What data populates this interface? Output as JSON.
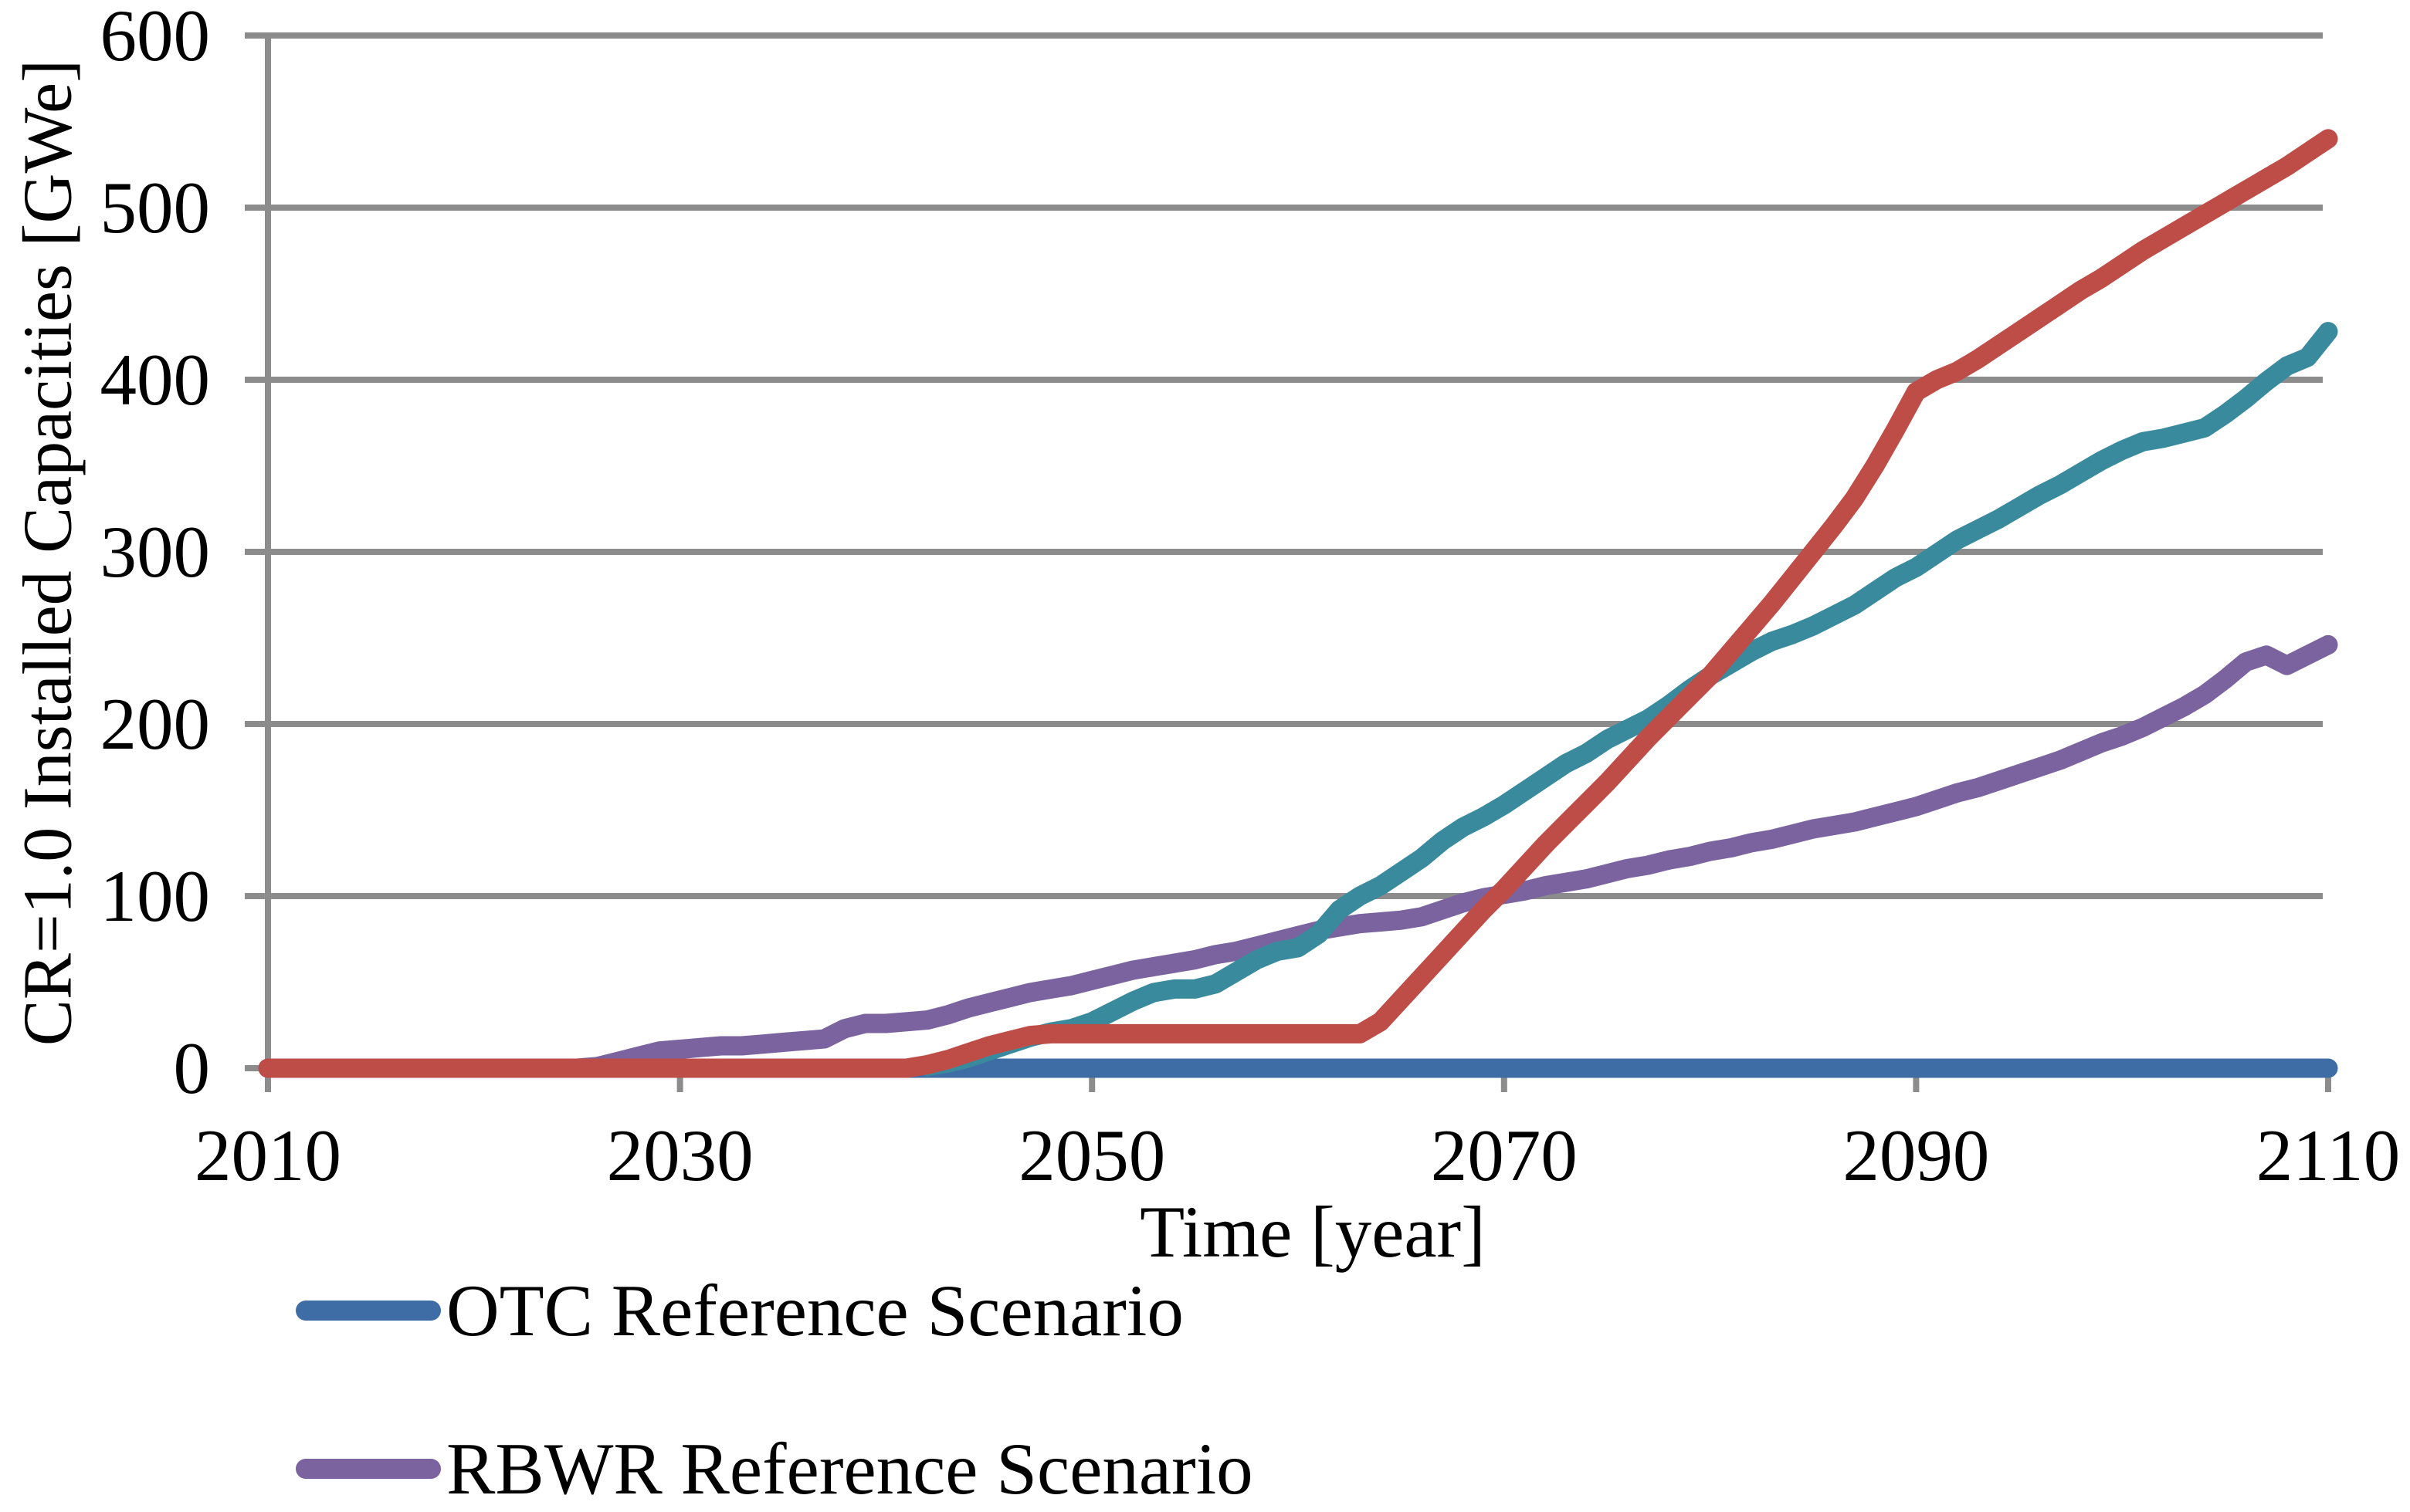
{
  "chart_data": {
    "type": "line",
    "title": "",
    "xlabel": "Time [year]",
    "ylabel": "CR=1.0 Installed Capacities [GWe]",
    "xlim": [
      2010,
      2110
    ],
    "ylim": [
      0,
      600
    ],
    "x_ticks": [
      "2010",
      "2030",
      "2050",
      "2070",
      "2090",
      "2110"
    ],
    "x_tick_years": [
      2010,
      2030,
      2050,
      2070,
      2090,
      2110
    ],
    "y_ticks": [
      "0",
      "100",
      "200",
      "300",
      "400",
      "500",
      "600"
    ],
    "y_tick_values": [
      0,
      100,
      200,
      300,
      400,
      500,
      600
    ],
    "grid": "horizontal-on",
    "gridline_color": "#8C8C8C",
    "legend_position": "bottom-left",
    "series": [
      {
        "name": "OTC Reference Scenario",
        "color": "#3E6DA5",
        "points": [
          [
            2010,
            0
          ],
          [
            2110,
            0
          ]
        ]
      },
      {
        "name": "RBWR Reference Scenario",
        "color": "#7A639E",
        "points": [
          [
            2010,
            0
          ],
          [
            2025,
            0
          ],
          [
            2026,
            1
          ],
          [
            2027,
            4
          ],
          [
            2028,
            7
          ],
          [
            2029,
            10
          ],
          [
            2030,
            11
          ],
          [
            2031,
            12
          ],
          [
            2032,
            13
          ],
          [
            2033,
            13
          ],
          [
            2034,
            14
          ],
          [
            2035,
            15
          ],
          [
            2036,
            16
          ],
          [
            2037,
            17
          ],
          [
            2038,
            23
          ],
          [
            2039,
            26
          ],
          [
            2040,
            26
          ],
          [
            2041,
            27
          ],
          [
            2042,
            28
          ],
          [
            2043,
            31
          ],
          [
            2044,
            35
          ],
          [
            2045,
            38
          ],
          [
            2046,
            41
          ],
          [
            2047,
            44
          ],
          [
            2048,
            46
          ],
          [
            2049,
            48
          ],
          [
            2050,
            51
          ],
          [
            2051,
            54
          ],
          [
            2052,
            57
          ],
          [
            2053,
            59
          ],
          [
            2054,
            61
          ],
          [
            2055,
            63
          ],
          [
            2056,
            66
          ],
          [
            2057,
            68
          ],
          [
            2058,
            71
          ],
          [
            2059,
            74
          ],
          [
            2060,
            77
          ],
          [
            2061,
            80
          ],
          [
            2062,
            82
          ],
          [
            2063,
            84
          ],
          [
            2064,
            85
          ],
          [
            2065,
            86
          ],
          [
            2066,
            88
          ],
          [
            2067,
            92
          ],
          [
            2068,
            96
          ],
          [
            2069,
            99
          ],
          [
            2070,
            101
          ],
          [
            2071,
            103
          ],
          [
            2072,
            106
          ],
          [
            2073,
            108
          ],
          [
            2074,
            110
          ],
          [
            2075,
            113
          ],
          [
            2076,
            116
          ],
          [
            2077,
            118
          ],
          [
            2078,
            121
          ],
          [
            2079,
            123
          ],
          [
            2080,
            126
          ],
          [
            2081,
            128
          ],
          [
            2082,
            131
          ],
          [
            2083,
            133
          ],
          [
            2084,
            136
          ],
          [
            2085,
            139
          ],
          [
            2086,
            141
          ],
          [
            2087,
            143
          ],
          [
            2088,
            146
          ],
          [
            2089,
            149
          ],
          [
            2090,
            152
          ],
          [
            2091,
            156
          ],
          [
            2092,
            160
          ],
          [
            2093,
            163
          ],
          [
            2094,
            167
          ],
          [
            2095,
            171
          ],
          [
            2096,
            175
          ],
          [
            2097,
            179
          ],
          [
            2098,
            184
          ],
          [
            2099,
            189
          ],
          [
            2100,
            193
          ],
          [
            2101,
            198
          ],
          [
            2102,
            204
          ],
          [
            2103,
            210
          ],
          [
            2104,
            217
          ],
          [
            2105,
            226
          ],
          [
            2106,
            236
          ],
          [
            2107,
            240
          ],
          [
            2108,
            234
          ],
          [
            2109,
            240
          ],
          [
            2110,
            246
          ]
        ]
      },
      {
        "name": "",
        "color": "#3A8A9E",
        "points": [
          [
            2042,
            1
          ],
          [
            2043,
            3
          ],
          [
            2044,
            6
          ],
          [
            2045,
            10
          ],
          [
            2046,
            14
          ],
          [
            2047,
            18
          ],
          [
            2048,
            21
          ],
          [
            2049,
            23
          ],
          [
            2050,
            27
          ],
          [
            2051,
            33
          ],
          [
            2052,
            39
          ],
          [
            2053,
            44
          ],
          [
            2054,
            46
          ],
          [
            2055,
            46
          ],
          [
            2056,
            49
          ],
          [
            2057,
            56
          ],
          [
            2058,
            63
          ],
          [
            2059,
            68
          ],
          [
            2060,
            70
          ],
          [
            2061,
            78
          ],
          [
            2062,
            92
          ],
          [
            2063,
            100
          ],
          [
            2064,
            106
          ],
          [
            2065,
            114
          ],
          [
            2066,
            122
          ],
          [
            2067,
            132
          ],
          [
            2068,
            140
          ],
          [
            2069,
            146
          ],
          [
            2070,
            153
          ],
          [
            2071,
            161
          ],
          [
            2072,
            169
          ],
          [
            2073,
            177
          ],
          [
            2074,
            183
          ],
          [
            2075,
            191
          ],
          [
            2076,
            197
          ],
          [
            2077,
            203
          ],
          [
            2078,
            211
          ],
          [
            2079,
            220
          ],
          [
            2080,
            228
          ],
          [
            2081,
            235
          ],
          [
            2082,
            242
          ],
          [
            2083,
            248
          ],
          [
            2084,
            252
          ],
          [
            2085,
            257
          ],
          [
            2086,
            263
          ],
          [
            2087,
            269
          ],
          [
            2088,
            277
          ],
          [
            2089,
            285
          ],
          [
            2090,
            291
          ],
          [
            2091,
            299
          ],
          [
            2092,
            307
          ],
          [
            2093,
            313
          ],
          [
            2094,
            319
          ],
          [
            2095,
            326
          ],
          [
            2096,
            333
          ],
          [
            2097,
            339
          ],
          [
            2098,
            346
          ],
          [
            2099,
            353
          ],
          [
            2100,
            359
          ],
          [
            2101,
            364
          ],
          [
            2102,
            366
          ],
          [
            2103,
            369
          ],
          [
            2104,
            372
          ],
          [
            2105,
            380
          ],
          [
            2106,
            389
          ],
          [
            2107,
            399
          ],
          [
            2108,
            408
          ],
          [
            2109,
            413
          ],
          [
            2110,
            428
          ]
        ]
      },
      {
        "name": "",
        "color": "#BE4D48",
        "points": [
          [
            2010,
            0
          ],
          [
            2041,
            0
          ],
          [
            2042,
            2
          ],
          [
            2043,
            5
          ],
          [
            2044,
            9
          ],
          [
            2045,
            13
          ],
          [
            2046,
            16
          ],
          [
            2047,
            19
          ],
          [
            2048,
            20
          ],
          [
            2049,
            20
          ],
          [
            2063,
            20
          ],
          [
            2064,
            27
          ],
          [
            2065,
            40
          ],
          [
            2066,
            53
          ],
          [
            2067,
            66
          ],
          [
            2068,
            79
          ],
          [
            2069,
            92
          ],
          [
            2070,
            104
          ],
          [
            2071,
            117
          ],
          [
            2072,
            130
          ],
          [
            2073,
            142
          ],
          [
            2074,
            154
          ],
          [
            2075,
            166
          ],
          [
            2076,
            179
          ],
          [
            2077,
            192
          ],
          [
            2078,
            204
          ],
          [
            2079,
            216
          ],
          [
            2080,
            228
          ],
          [
            2081,
            242
          ],
          [
            2082,
            256
          ],
          [
            2083,
            270
          ],
          [
            2084,
            285
          ],
          [
            2085,
            300
          ],
          [
            2086,
            315
          ],
          [
            2087,
            331
          ],
          [
            2088,
            350
          ],
          [
            2089,
            371
          ],
          [
            2090,
            393
          ],
          [
            2091,
            400
          ],
          [
            2092,
            405
          ],
          [
            2093,
            412
          ],
          [
            2094,
            420
          ],
          [
            2095,
            428
          ],
          [
            2096,
            436
          ],
          [
            2097,
            444
          ],
          [
            2098,
            452
          ],
          [
            2099,
            459
          ],
          [
            2100,
            467
          ],
          [
            2101,
            475
          ],
          [
            2102,
            482
          ],
          [
            2103,
            489
          ],
          [
            2104,
            496
          ],
          [
            2105,
            503
          ],
          [
            2106,
            510
          ],
          [
            2107,
            517
          ],
          [
            2108,
            524
          ],
          [
            2109,
            532
          ],
          [
            2110,
            540
          ]
        ]
      }
    ]
  },
  "legend": {
    "items": [
      {
        "label": "OTC Reference Scenario",
        "series_index": 0
      },
      {
        "label": "RBWR Reference Scenario",
        "series_index": 1
      }
    ]
  }
}
